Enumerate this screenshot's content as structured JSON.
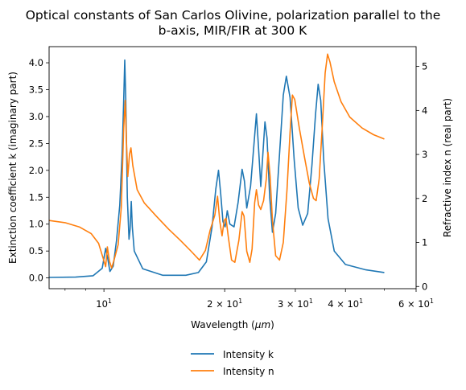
{
  "chart_data": {
    "type": "line",
    "title_line1": "Optical constants of San Carlos Olivine, polarization parallel to the",
    "title_line2": "b-axis, MIR/FIR at 300 K",
    "xlabel": "Wavelength ($\\mu m$)",
    "ylabel_left": "Extinction coefficient k (imaginary part)",
    "ylabel_right": "Refractive index n (real part)",
    "xscale": "log",
    "xlim": [
      7.3,
      60
    ],
    "ylim_left": [
      -0.2,
      4.3
    ],
    "ylim_right": [
      -0.05,
      5.45
    ],
    "x_ticks": [
      {
        "value": 10,
        "label": "10"
      },
      {
        "value": 20,
        "label": "2 × 10"
      },
      {
        "value": 30,
        "label": "3 × 10"
      },
      {
        "value": 40,
        "label": "4 × 10"
      },
      {
        "value": 60,
        "label": "6 × 10"
      }
    ],
    "x_tick_exponent": "1",
    "y_ticks_left": [
      "0.0",
      "0.5",
      "1.0",
      "1.5",
      "2.0",
      "2.5",
      "3.0",
      "3.5",
      "4.0"
    ],
    "y_ticks_right": [
      "0",
      "1",
      "2",
      "3",
      "4",
      "5"
    ],
    "legend_position": "below",
    "grid": false,
    "series": [
      {
        "name": "Intensity k",
        "color": "#1f77b4",
        "axis": "left",
        "points": [
          [
            7.3,
            0.01
          ],
          [
            8.5,
            0.015
          ],
          [
            9.4,
            0.04
          ],
          [
            9.9,
            0.18
          ],
          [
            10.1,
            0.55
          ],
          [
            10.2,
            0.4
          ],
          [
            10.35,
            0.12
          ],
          [
            10.55,
            0.22
          ],
          [
            10.75,
            0.7
          ],
          [
            10.95,
            1.35
          ],
          [
            11.1,
            2.3
          ],
          [
            11.2,
            3.3
          ],
          [
            11.27,
            4.05
          ],
          [
            11.34,
            3.3
          ],
          [
            11.44,
            1.5
          ],
          [
            11.55,
            0.72
          ],
          [
            11.62,
            0.9
          ],
          [
            11.7,
            1.42
          ],
          [
            11.77,
            0.95
          ],
          [
            11.9,
            0.5
          ],
          [
            12.5,
            0.17
          ],
          [
            14,
            0.05
          ],
          [
            16,
            0.05
          ],
          [
            17.2,
            0.1
          ],
          [
            18,
            0.3
          ],
          [
            18.6,
            0.95
          ],
          [
            19,
            1.65
          ],
          [
            19.3,
            2.0
          ],
          [
            19.55,
            1.55
          ],
          [
            19.8,
            1.05
          ],
          [
            20.05,
            0.95
          ],
          [
            20.3,
            1.25
          ],
          [
            20.6,
            1.0
          ],
          [
            21.1,
            0.95
          ],
          [
            21.6,
            1.4
          ],
          [
            22.1,
            2.02
          ],
          [
            22.4,
            1.8
          ],
          [
            22.7,
            1.3
          ],
          [
            23.2,
            1.7
          ],
          [
            23.7,
            2.55
          ],
          [
            24.0,
            3.05
          ],
          [
            24.3,
            2.4
          ],
          [
            24.6,
            1.7
          ],
          [
            25.2,
            2.9
          ],
          [
            25.5,
            2.6
          ],
          [
            25.9,
            1.5
          ],
          [
            26.3,
            0.85
          ],
          [
            26.8,
            1.2
          ],
          [
            27.4,
            2.3
          ],
          [
            28.0,
            3.4
          ],
          [
            28.5,
            3.75
          ],
          [
            29.1,
            3.35
          ],
          [
            29.8,
            2.2
          ],
          [
            30.5,
            1.3
          ],
          [
            31.3,
            0.98
          ],
          [
            32.2,
            1.2
          ],
          [
            33.0,
            2.1
          ],
          [
            33.7,
            3.05
          ],
          [
            34.2,
            3.6
          ],
          [
            34.7,
            3.3
          ],
          [
            35.3,
            2.2
          ],
          [
            36.2,
            1.1
          ],
          [
            37.5,
            0.5
          ],
          [
            40,
            0.25
          ],
          [
            45,
            0.15
          ],
          [
            50,
            0.1
          ]
        ]
      },
      {
        "name": "Intensity n",
        "color": "#ff7f0e",
        "axis": "right",
        "points": [
          [
            7.3,
            1.5
          ],
          [
            8,
            1.45
          ],
          [
            8.7,
            1.35
          ],
          [
            9.3,
            1.2
          ],
          [
            9.7,
            0.98
          ],
          [
            9.95,
            0.65
          ],
          [
            10.1,
            0.45
          ],
          [
            10.2,
            0.9
          ],
          [
            10.32,
            0.58
          ],
          [
            10.45,
            0.42
          ],
          [
            10.6,
            0.6
          ],
          [
            10.85,
            0.95
          ],
          [
            11.05,
            1.8
          ],
          [
            11.2,
            3.6
          ],
          [
            11.3,
            4.23
          ],
          [
            11.38,
            3.3
          ],
          [
            11.47,
            2.5
          ],
          [
            11.58,
            3.0
          ],
          [
            11.68,
            3.15
          ],
          [
            11.8,
            2.75
          ],
          [
            12.1,
            2.2
          ],
          [
            12.6,
            1.9
          ],
          [
            13.5,
            1.6
          ],
          [
            14.5,
            1.3
          ],
          [
            15.5,
            1.05
          ],
          [
            16.5,
            0.8
          ],
          [
            17.3,
            0.6
          ],
          [
            17.9,
            0.82
          ],
          [
            18.4,
            1.28
          ],
          [
            18.9,
            1.62
          ],
          [
            19.2,
            2.05
          ],
          [
            19.45,
            1.48
          ],
          [
            19.7,
            1.15
          ],
          [
            19.95,
            1.5
          ],
          [
            20.15,
            1.55
          ],
          [
            20.4,
            1.15
          ],
          [
            20.8,
            0.6
          ],
          [
            21.2,
            0.55
          ],
          [
            21.7,
            1.05
          ],
          [
            22.1,
            1.7
          ],
          [
            22.35,
            1.6
          ],
          [
            22.7,
            0.8
          ],
          [
            23.1,
            0.55
          ],
          [
            23.4,
            0.85
          ],
          [
            23.75,
            1.9
          ],
          [
            24.0,
            2.2
          ],
          [
            24.3,
            1.85
          ],
          [
            24.6,
            1.75
          ],
          [
            25.0,
            1.95
          ],
          [
            25.4,
            2.45
          ],
          [
            25.65,
            3.05
          ],
          [
            25.95,
            2.5
          ],
          [
            26.3,
            1.5
          ],
          [
            26.8,
            0.7
          ],
          [
            27.4,
            0.6
          ],
          [
            28.0,
            1.0
          ],
          [
            28.6,
            2.2
          ],
          [
            29.1,
            3.5
          ],
          [
            29.5,
            4.35
          ],
          [
            29.9,
            4.25
          ],
          [
            30.7,
            3.6
          ],
          [
            31.6,
            2.95
          ],
          [
            32.5,
            2.35
          ],
          [
            33.3,
            2.0
          ],
          [
            33.8,
            1.95
          ],
          [
            34.4,
            2.45
          ],
          [
            35.0,
            3.6
          ],
          [
            35.6,
            4.85
          ],
          [
            36.1,
            5.28
          ],
          [
            36.6,
            5.1
          ],
          [
            37.5,
            4.65
          ],
          [
            39,
            4.2
          ],
          [
            41,
            3.85
          ],
          [
            44,
            3.6
          ],
          [
            47,
            3.45
          ],
          [
            50,
            3.35
          ]
        ]
      }
    ]
  }
}
